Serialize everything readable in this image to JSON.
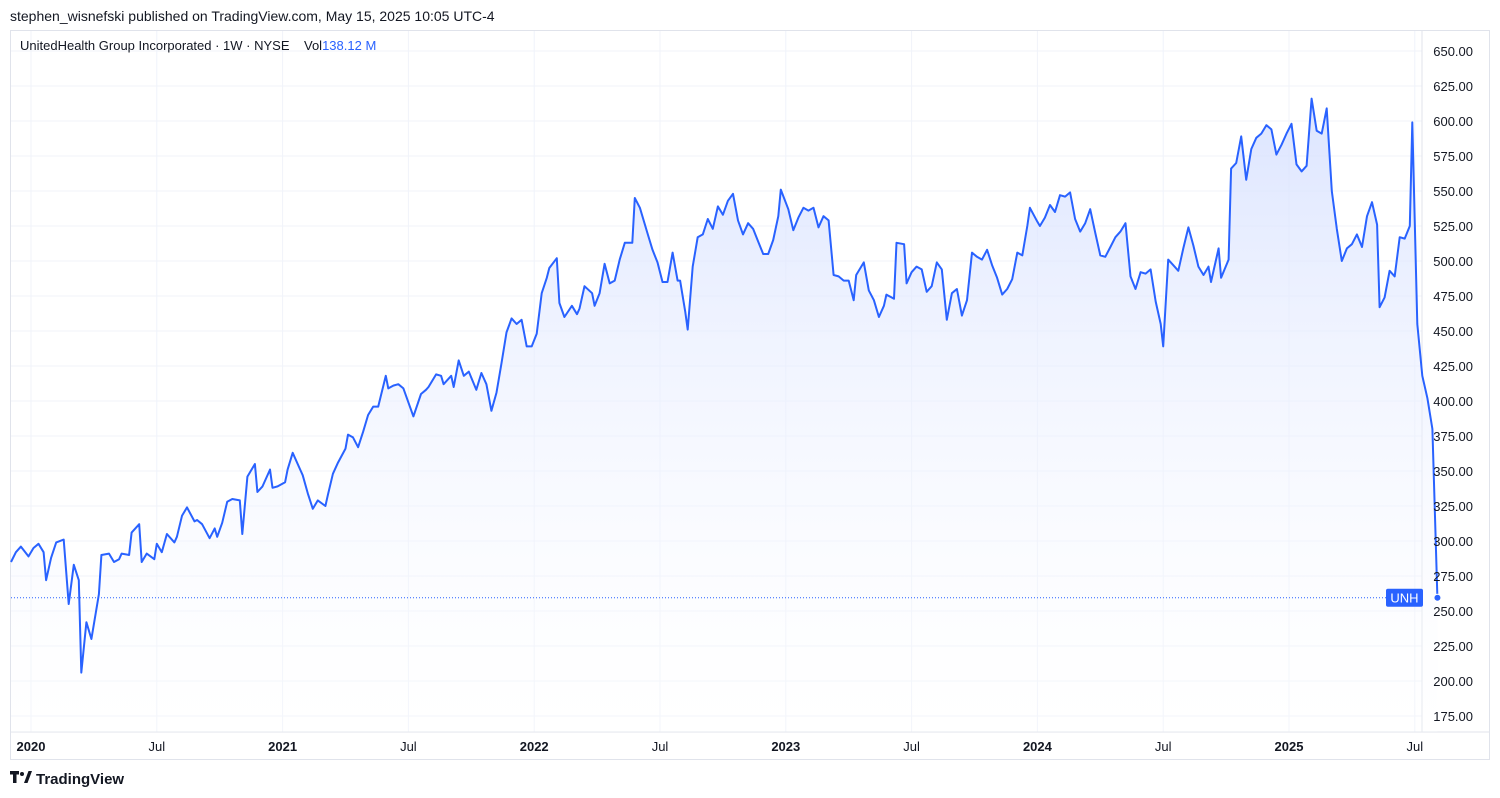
{
  "header": {
    "published_by": "stephen_wisnefski published on TradingView.com, May 15, 2025 10:05 UTC-4"
  },
  "legend": {
    "instrument": "UnitedHealth Group Incorporated · 1W · NYSE",
    "vol_label": "Vol",
    "vol_value": "138.12 M"
  },
  "footer": {
    "brand": "TradingView",
    "logo_icon": "tradingview-logo-icon"
  },
  "colors": {
    "line": "#2962ff",
    "area_top": "#dbe4ff",
    "grid": "#f0f3fa",
    "text": "#131722"
  },
  "chart_data": {
    "type": "area",
    "symbol_badge": "UNH",
    "last_value": 259.5,
    "ylim": [
      160,
      662
    ],
    "y_ticks": [
      "650.00",
      "625.00",
      "600.00",
      "575.00",
      "550.00",
      "525.00",
      "500.00",
      "475.00",
      "450.00",
      "425.00",
      "400.00",
      "375.00",
      "350.00",
      "325.00",
      "300.00",
      "275.00",
      "250.00",
      "225.00",
      "200.00",
      "175.00"
    ],
    "x_ticks": [
      {
        "label": "2020",
        "pos": 2020.0,
        "bold": true
      },
      {
        "label": "Jul",
        "pos": 2020.5,
        "bold": false
      },
      {
        "label": "2021",
        "pos": 2021.0,
        "bold": true
      },
      {
        "label": "Jul",
        "pos": 2021.5,
        "bold": false
      },
      {
        "label": "2022",
        "pos": 2022.0,
        "bold": true
      },
      {
        "label": "Jul",
        "pos": 2022.5,
        "bold": false
      },
      {
        "label": "2023",
        "pos": 2023.0,
        "bold": true
      },
      {
        "label": "Jul",
        "pos": 2023.5,
        "bold": false
      },
      {
        "label": "2024",
        "pos": 2024.0,
        "bold": true
      },
      {
        "label": "Jul",
        "pos": 2024.5,
        "bold": false
      },
      {
        "label": "2025",
        "pos": 2025.0,
        "bold": true
      },
      {
        "label": "Jul",
        "pos": 2025.5,
        "bold": false
      }
    ],
    "grid": true,
    "series": [
      {
        "name": "UNH",
        "points": [
          [
            2019.92,
            285
          ],
          [
            2019.94,
            292
          ],
          [
            2019.96,
            296
          ],
          [
            2019.99,
            289
          ],
          [
            2020.01,
            295
          ],
          [
            2020.03,
            298
          ],
          [
            2020.05,
            292
          ],
          [
            2020.06,
            272
          ],
          [
            2020.08,
            288
          ],
          [
            2020.1,
            299
          ],
          [
            2020.13,
            301
          ],
          [
            2020.15,
            255
          ],
          [
            2020.17,
            283
          ],
          [
            2020.19,
            272
          ],
          [
            2020.2,
            206
          ],
          [
            2020.22,
            242
          ],
          [
            2020.24,
            230
          ],
          [
            2020.27,
            262
          ],
          [
            2020.28,
            290
          ],
          [
            2020.31,
            291
          ],
          [
            2020.33,
            285
          ],
          [
            2020.35,
            287
          ],
          [
            2020.36,
            291
          ],
          [
            2020.39,
            290
          ],
          [
            2020.4,
            306
          ],
          [
            2020.43,
            312
          ],
          [
            2020.44,
            285
          ],
          [
            2020.46,
            291
          ],
          [
            2020.49,
            287
          ],
          [
            2020.5,
            298
          ],
          [
            2020.52,
            292
          ],
          [
            2020.54,
            305
          ],
          [
            2020.57,
            299
          ],
          [
            2020.58,
            303
          ],
          [
            2020.6,
            318
          ],
          [
            2020.62,
            324
          ],
          [
            2020.65,
            314
          ],
          [
            2020.66,
            315
          ],
          [
            2020.68,
            312
          ],
          [
            2020.71,
            302
          ],
          [
            2020.73,
            309
          ],
          [
            2020.74,
            303
          ],
          [
            2020.76,
            313
          ],
          [
            2020.78,
            328
          ],
          [
            2020.8,
            330
          ],
          [
            2020.83,
            329
          ],
          [
            2020.84,
            305
          ],
          [
            2020.86,
            346
          ],
          [
            2020.89,
            355
          ],
          [
            2020.9,
            335
          ],
          [
            2020.92,
            339
          ],
          [
            2020.95,
            351
          ],
          [
            2020.96,
            338
          ],
          [
            2020.98,
            339
          ],
          [
            2021.01,
            342
          ],
          [
            2021.02,
            351
          ],
          [
            2021.04,
            363
          ],
          [
            2021.07,
            351
          ],
          [
            2021.08,
            347
          ],
          [
            2021.1,
            334
          ],
          [
            2021.12,
            323
          ],
          [
            2021.14,
            329
          ],
          [
            2021.17,
            325
          ],
          [
            2021.18,
            333
          ],
          [
            2021.2,
            348
          ],
          [
            2021.22,
            356
          ],
          [
            2021.25,
            366
          ],
          [
            2021.26,
            376
          ],
          [
            2021.28,
            374
          ],
          [
            2021.3,
            367
          ],
          [
            2021.32,
            378
          ],
          [
            2021.34,
            390
          ],
          [
            2021.36,
            396
          ],
          [
            2021.38,
            396
          ],
          [
            2021.41,
            418
          ],
          [
            2021.42,
            409
          ],
          [
            2021.44,
            411
          ],
          [
            2021.46,
            412
          ],
          [
            2021.48,
            409
          ],
          [
            2021.5,
            399
          ],
          [
            2021.52,
            389
          ],
          [
            2021.55,
            405
          ],
          [
            2021.57,
            408
          ],
          [
            2021.58,
            410
          ],
          [
            2021.61,
            419
          ],
          [
            2021.63,
            418
          ],
          [
            2021.64,
            412
          ],
          [
            2021.67,
            418
          ],
          [
            2021.68,
            410
          ],
          [
            2021.7,
            429
          ],
          [
            2021.72,
            418
          ],
          [
            2021.74,
            421
          ],
          [
            2021.77,
            408
          ],
          [
            2021.79,
            420
          ],
          [
            2021.81,
            412
          ],
          [
            2021.83,
            393
          ],
          [
            2021.85,
            406
          ],
          [
            2021.87,
            427
          ],
          [
            2021.89,
            449
          ],
          [
            2021.91,
            459
          ],
          [
            2021.93,
            455
          ],
          [
            2021.95,
            458
          ],
          [
            2021.97,
            439
          ],
          [
            2021.99,
            439
          ],
          [
            2022.01,
            448
          ],
          [
            2022.03,
            477
          ],
          [
            2022.05,
            488
          ],
          [
            2022.06,
            495
          ],
          [
            2022.09,
            502
          ],
          [
            2022.1,
            470
          ],
          [
            2022.12,
            460
          ],
          [
            2022.15,
            468
          ],
          [
            2022.17,
            462
          ],
          [
            2022.18,
            466
          ],
          [
            2022.2,
            482
          ],
          [
            2022.23,
            477
          ],
          [
            2022.24,
            468
          ],
          [
            2022.26,
            477
          ],
          [
            2022.28,
            498
          ],
          [
            2022.3,
            484
          ],
          [
            2022.32,
            486
          ],
          [
            2022.34,
            501
          ],
          [
            2022.36,
            513
          ],
          [
            2022.39,
            513
          ],
          [
            2022.4,
            545
          ],
          [
            2022.42,
            538
          ],
          [
            2022.45,
            520
          ],
          [
            2022.47,
            508
          ],
          [
            2022.49,
            499
          ],
          [
            2022.51,
            485
          ],
          [
            2022.53,
            485
          ],
          [
            2022.55,
            506
          ],
          [
            2022.57,
            486
          ],
          [
            2022.58,
            486
          ],
          [
            2022.6,
            464
          ],
          [
            2022.61,
            451
          ],
          [
            2022.63,
            496
          ],
          [
            2022.65,
            517
          ],
          [
            2022.67,
            519
          ],
          [
            2022.69,
            530
          ],
          [
            2022.71,
            523
          ],
          [
            2022.73,
            539
          ],
          [
            2022.75,
            533
          ],
          [
            2022.77,
            543
          ],
          [
            2022.79,
            548
          ],
          [
            2022.81,
            529
          ],
          [
            2022.83,
            519
          ],
          [
            2022.85,
            527
          ],
          [
            2022.87,
            523
          ],
          [
            2022.89,
            514
          ],
          [
            2022.91,
            505
          ],
          [
            2022.93,
            505
          ],
          [
            2022.95,
            515
          ],
          [
            2022.97,
            532
          ],
          [
            2022.98,
            551
          ],
          [
            2023.01,
            537
          ],
          [
            2023.03,
            522
          ],
          [
            2023.05,
            531
          ],
          [
            2023.07,
            538
          ],
          [
            2023.09,
            536
          ],
          [
            2023.11,
            538
          ],
          [
            2023.13,
            524
          ],
          [
            2023.15,
            532
          ],
          [
            2023.17,
            529
          ],
          [
            2023.19,
            490
          ],
          [
            2023.21,
            489
          ],
          [
            2023.23,
            486
          ],
          [
            2023.25,
            486
          ],
          [
            2023.27,
            472
          ],
          [
            2023.28,
            490
          ],
          [
            2023.31,
            499
          ],
          [
            2023.33,
            479
          ],
          [
            2023.35,
            472
          ],
          [
            2023.37,
            460
          ],
          [
            2023.39,
            468
          ],
          [
            2023.4,
            476
          ],
          [
            2023.43,
            473
          ],
          [
            2023.44,
            513
          ],
          [
            2023.47,
            512
          ],
          [
            2023.48,
            484
          ],
          [
            2023.5,
            492
          ],
          [
            2023.52,
            496
          ],
          [
            2023.54,
            494
          ],
          [
            2023.56,
            478
          ],
          [
            2023.58,
            482
          ],
          [
            2023.6,
            499
          ],
          [
            2023.62,
            494
          ],
          [
            2023.64,
            458
          ],
          [
            2023.66,
            477
          ],
          [
            2023.68,
            480
          ],
          [
            2023.7,
            461
          ],
          [
            2023.72,
            472
          ],
          [
            2023.74,
            506
          ],
          [
            2023.76,
            503
          ],
          [
            2023.78,
            501
          ],
          [
            2023.8,
            508
          ],
          [
            2023.82,
            497
          ],
          [
            2023.84,
            488
          ],
          [
            2023.86,
            476
          ],
          [
            2023.88,
            480
          ],
          [
            2023.9,
            487
          ],
          [
            2023.92,
            506
          ],
          [
            2023.94,
            504
          ],
          [
            2023.96,
            525
          ],
          [
            2023.97,
            538
          ],
          [
            2024.0,
            528
          ],
          [
            2024.01,
            525
          ],
          [
            2024.03,
            531
          ],
          [
            2024.05,
            540
          ],
          [
            2024.07,
            535
          ],
          [
            2024.09,
            547
          ],
          [
            2024.11,
            546
          ],
          [
            2024.13,
            549
          ],
          [
            2024.15,
            530
          ],
          [
            2024.17,
            521
          ],
          [
            2024.19,
            527
          ],
          [
            2024.21,
            537
          ],
          [
            2024.23,
            520
          ],
          [
            2024.25,
            504
          ],
          [
            2024.27,
            503
          ],
          [
            2024.29,
            510
          ],
          [
            2024.31,
            517
          ],
          [
            2024.33,
            521
          ],
          [
            2024.35,
            527
          ],
          [
            2024.37,
            489
          ],
          [
            2024.39,
            480
          ],
          [
            2024.41,
            492
          ],
          [
            2024.43,
            491
          ],
          [
            2024.45,
            494
          ],
          [
            2024.47,
            471
          ],
          [
            2024.49,
            455
          ],
          [
            2024.5,
            439
          ],
          [
            2024.52,
            501
          ],
          [
            2024.54,
            497
          ],
          [
            2024.56,
            493
          ],
          [
            2024.58,
            509
          ],
          [
            2024.6,
            524
          ],
          [
            2024.62,
            511
          ],
          [
            2024.64,
            496
          ],
          [
            2024.66,
            490
          ],
          [
            2024.68,
            496
          ],
          [
            2024.69,
            485
          ],
          [
            2024.72,
            509
          ],
          [
            2024.73,
            488
          ],
          [
            2024.76,
            501
          ],
          [
            2024.77,
            566
          ],
          [
            2024.79,
            570
          ],
          [
            2024.81,
            589
          ],
          [
            2024.83,
            558
          ],
          [
            2024.85,
            580
          ],
          [
            2024.87,
            588
          ],
          [
            2024.89,
            591
          ],
          [
            2024.91,
            597
          ],
          [
            2024.93,
            594
          ],
          [
            2024.95,
            576
          ],
          [
            2024.97,
            583
          ],
          [
            2024.99,
            591
          ],
          [
            2025.01,
            598
          ],
          [
            2025.03,
            569
          ],
          [
            2025.05,
            564
          ],
          [
            2025.07,
            568
          ],
          [
            2025.09,
            616
          ],
          [
            2025.11,
            593
          ],
          [
            2025.13,
            591
          ],
          [
            2025.15,
            609
          ],
          [
            2025.17,
            550
          ],
          [
            2025.19,
            523
          ],
          [
            2025.21,
            500
          ],
          [
            2025.23,
            509
          ],
          [
            2025.25,
            512
          ],
          [
            2025.27,
            519
          ],
          [
            2025.29,
            510
          ],
          [
            2025.31,
            532
          ],
          [
            2025.33,
            542
          ],
          [
            2025.35,
            526
          ],
          [
            2025.36,
            467
          ],
          [
            2025.38,
            474
          ],
          [
            2025.4,
            493
          ],
          [
            2025.42,
            489
          ],
          [
            2025.44,
            517
          ],
          [
            2025.46,
            516
          ],
          [
            2025.48,
            525
          ],
          [
            2025.49,
            599
          ],
          [
            2025.51,
            455
          ],
          [
            2025.53,
            418
          ],
          [
            2025.55,
            402
          ],
          [
            2025.57,
            380
          ],
          [
            2025.59,
            259.5
          ]
        ]
      }
    ]
  }
}
